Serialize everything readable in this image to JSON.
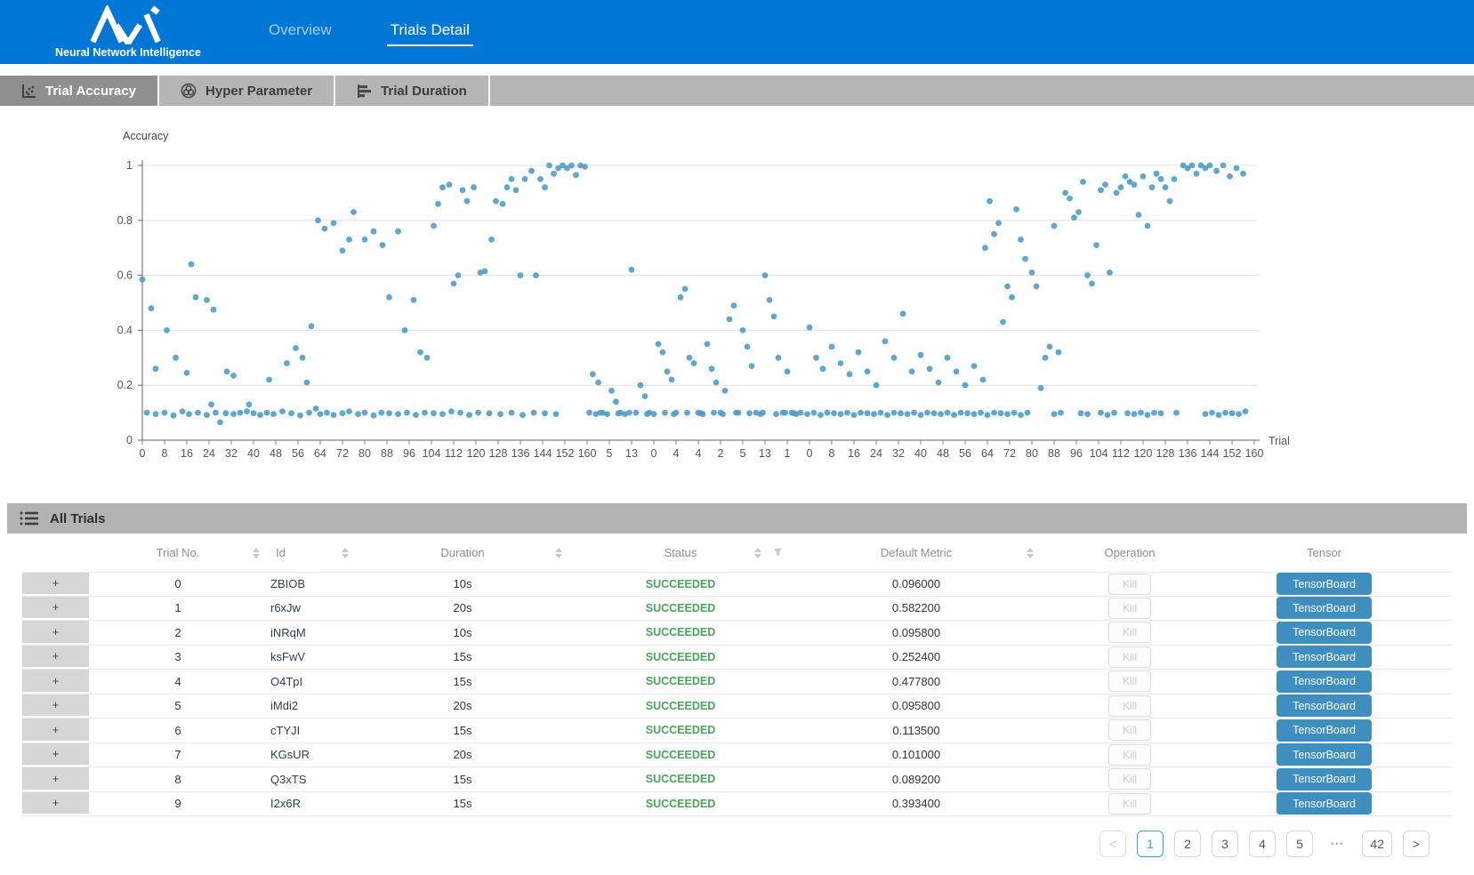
{
  "header": {
    "brand": "Neural Network Intelligence",
    "tabs": [
      {
        "label": "Overview",
        "active": false
      },
      {
        "label": "Trials Detail",
        "active": true
      }
    ]
  },
  "subtabs": [
    {
      "label": "Trial Accuracy",
      "icon": "scatter-plot-icon",
      "active": true
    },
    {
      "label": "Hyper Parameter",
      "icon": "hyper-parameter-icon",
      "active": false
    },
    {
      "label": "Trial Duration",
      "icon": "duration-bars-icon",
      "active": false
    }
  ],
  "chart_data": {
    "type": "scatter",
    "title": "Accuracy",
    "xlabel": "Trial",
    "ylabel": "Accuracy",
    "ylim": [
      0,
      1
    ],
    "grid": true,
    "y_ticks": [
      0,
      0.2,
      0.4,
      0.6,
      0.8,
      1
    ],
    "x_tick_labels": [
      "0",
      "8",
      "16",
      "24",
      "32",
      "40",
      "48",
      "56",
      "64",
      "72",
      "80",
      "88",
      "96",
      "104",
      "112",
      "120",
      "128",
      "136",
      "144",
      "152",
      "160",
      "5",
      "13",
      "0",
      "4",
      "4",
      "2",
      "5",
      "13",
      "1",
      "0",
      "8",
      "16",
      "24",
      "32",
      "40",
      "48",
      "56",
      "64",
      "72",
      "80",
      "88",
      "96",
      "104",
      "112",
      "120",
      "128",
      "136",
      "144",
      "152",
      "160"
    ],
    "point_color": "#4f9dc9",
    "points": [
      [
        0.004,
        0.1
      ],
      [
        0.012,
        0.095
      ],
      [
        0.02,
        0.1
      ],
      [
        0.028,
        0.09
      ],
      [
        0.036,
        0.105
      ],
      [
        0.042,
        0.095
      ],
      [
        0.05,
        0.1
      ],
      [
        0.058,
        0.092
      ],
      [
        0.062,
        0.13
      ],
      [
        0.066,
        0.1
      ],
      [
        0.07,
        0.065
      ],
      [
        0.075,
        0.098
      ],
      [
        0.082,
        0.095
      ],
      [
        0.088,
        0.1
      ],
      [
        0.094,
        0.105
      ],
      [
        0.1,
        0.098
      ],
      [
        0.106,
        0.092
      ],
      [
        0.112,
        0.1
      ],
      [
        0.118,
        0.095
      ],
      [
        0.126,
        0.105
      ],
      [
        0.134,
        0.098
      ],
      [
        0.142,
        0.09
      ],
      [
        0.15,
        0.1
      ],
      [
        0.156,
        0.115
      ],
      [
        0.16,
        0.095
      ],
      [
        0.166,
        0.1
      ],
      [
        0.172,
        0.092
      ],
      [
        0.18,
        0.098
      ],
      [
        0.186,
        0.105
      ],
      [
        0.194,
        0.095
      ],
      [
        0.2,
        0.1
      ],
      [
        0.208,
        0.09
      ],
      [
        0.215,
        0.1
      ],
      [
        0.222,
        0.098
      ],
      [
        0.23,
        0.095
      ],
      [
        0.238,
        0.1
      ],
      [
        0.246,
        0.092
      ],
      [
        0.254,
        0.1
      ],
      [
        0.262,
        0.098
      ],
      [
        0.27,
        0.095
      ],
      [
        0.278,
        0.105
      ],
      [
        0.286,
        0.1
      ],
      [
        0.294,
        0.092
      ],
      [
        0.302,
        0.1
      ],
      [
        0.312,
        0.098
      ],
      [
        0.322,
        0.095
      ],
      [
        0.332,
        0.1
      ],
      [
        0.342,
        0.092
      ],
      [
        0.352,
        0.1
      ],
      [
        0.362,
        0.098
      ],
      [
        0.372,
        0.095
      ],
      [
        0.0,
        0.585
      ],
      [
        0.008,
        0.48
      ],
      [
        0.012,
        0.26
      ],
      [
        0.022,
        0.4
      ],
      [
        0.03,
        0.3
      ],
      [
        0.04,
        0.245
      ],
      [
        0.044,
        0.64
      ],
      [
        0.048,
        0.52
      ],
      [
        0.058,
        0.51
      ],
      [
        0.064,
        0.475
      ],
      [
        0.076,
        0.25
      ],
      [
        0.082,
        0.235
      ],
      [
        0.096,
        0.13
      ],
      [
        0.114,
        0.22
      ],
      [
        0.13,
        0.28
      ],
      [
        0.138,
        0.335
      ],
      [
        0.144,
        0.3
      ],
      [
        0.148,
        0.21
      ],
      [
        0.152,
        0.415
      ],
      [
        0.158,
        0.8
      ],
      [
        0.164,
        0.77
      ],
      [
        0.172,
        0.79
      ],
      [
        0.18,
        0.69
      ],
      [
        0.186,
        0.73
      ],
      [
        0.19,
        0.83
      ],
      [
        0.2,
        0.73
      ],
      [
        0.208,
        0.76
      ],
      [
        0.216,
        0.71
      ],
      [
        0.222,
        0.52
      ],
      [
        0.23,
        0.76
      ],
      [
        0.236,
        0.4
      ],
      [
        0.244,
        0.51
      ],
      [
        0.25,
        0.32
      ],
      [
        0.256,
        0.3
      ],
      [
        0.262,
        0.78
      ],
      [
        0.266,
        0.86
      ],
      [
        0.27,
        0.92
      ],
      [
        0.276,
        0.93
      ],
      [
        0.28,
        0.57
      ],
      [
        0.284,
        0.6
      ],
      [
        0.288,
        0.91
      ],
      [
        0.292,
        0.87
      ],
      [
        0.298,
        0.92
      ],
      [
        0.304,
        0.61
      ],
      [
        0.308,
        0.615
      ],
      [
        0.314,
        0.73
      ],
      [
        0.318,
        0.87
      ],
      [
        0.324,
        0.86
      ],
      [
        0.328,
        0.92
      ],
      [
        0.332,
        0.95
      ],
      [
        0.336,
        0.91
      ],
      [
        0.34,
        0.6
      ],
      [
        0.344,
        0.95
      ],
      [
        0.35,
        0.98
      ],
      [
        0.354,
        0.6
      ],
      [
        0.358,
        0.95
      ],
      [
        0.362,
        0.92
      ],
      [
        0.366,
        1.0
      ],
      [
        0.37,
        0.97
      ],
      [
        0.374,
        0.99
      ],
      [
        0.378,
        1.0
      ],
      [
        0.382,
        0.99
      ],
      [
        0.386,
        1.0
      ],
      [
        0.39,
        0.965
      ],
      [
        0.394,
        1.0
      ],
      [
        0.398,
        0.995
      ],
      [
        0.405,
        0.24
      ],
      [
        0.41,
        0.21
      ],
      [
        0.414,
        0.1
      ],
      [
        0.418,
        0.095
      ],
      [
        0.422,
        0.18
      ],
      [
        0.426,
        0.14
      ],
      [
        0.43,
        0.1
      ],
      [
        0.434,
        0.095
      ],
      [
        0.44,
        0.62
      ],
      [
        0.444,
        0.1
      ],
      [
        0.448,
        0.2
      ],
      [
        0.452,
        0.16
      ],
      [
        0.456,
        0.1
      ],
      [
        0.46,
        0.095
      ],
      [
        0.464,
        0.35
      ],
      [
        0.468,
        0.32
      ],
      [
        0.472,
        0.25
      ],
      [
        0.476,
        0.22
      ],
      [
        0.48,
        0.1
      ],
      [
        0.484,
        0.52
      ],
      [
        0.488,
        0.55
      ],
      [
        0.492,
        0.3
      ],
      [
        0.496,
        0.28
      ],
      [
        0.5,
        0.1
      ],
      [
        0.504,
        0.095
      ],
      [
        0.508,
        0.35
      ],
      [
        0.512,
        0.26
      ],
      [
        0.516,
        0.21
      ],
      [
        0.52,
        0.1
      ],
      [
        0.524,
        0.18
      ],
      [
        0.528,
        0.44
      ],
      [
        0.532,
        0.49
      ],
      [
        0.536,
        0.1
      ],
      [
        0.54,
        0.4
      ],
      [
        0.544,
        0.34
      ],
      [
        0.548,
        0.27
      ],
      [
        0.552,
        0.1
      ],
      [
        0.556,
        0.095
      ],
      [
        0.56,
        0.6
      ],
      [
        0.564,
        0.51
      ],
      [
        0.568,
        0.45
      ],
      [
        0.572,
        0.3
      ],
      [
        0.576,
        0.1
      ],
      [
        0.58,
        0.25
      ],
      [
        0.584,
        0.1
      ],
      [
        0.588,
        0.095
      ],
      [
        0.402,
        0.1
      ],
      [
        0.408,
        0.095
      ],
      [
        0.412,
        0.1
      ],
      [
        0.428,
        0.098
      ],
      [
        0.438,
        0.1
      ],
      [
        0.454,
        0.095
      ],
      [
        0.47,
        0.1
      ],
      [
        0.478,
        0.095
      ],
      [
        0.49,
        0.1
      ],
      [
        0.502,
        0.098
      ],
      [
        0.514,
        0.1
      ],
      [
        0.522,
        0.095
      ],
      [
        0.534,
        0.1
      ],
      [
        0.546,
        0.098
      ],
      [
        0.558,
        0.1
      ],
      [
        0.57,
        0.095
      ],
      [
        0.578,
        0.1
      ],
      [
        0.586,
        0.098
      ],
      [
        0.592,
        0.1
      ],
      [
        0.598,
        0.095
      ],
      [
        0.604,
        0.1
      ],
      [
        0.61,
        0.092
      ],
      [
        0.616,
        0.1
      ],
      [
        0.622,
        0.098
      ],
      [
        0.628,
        0.095
      ],
      [
        0.634,
        0.1
      ],
      [
        0.64,
        0.092
      ],
      [
        0.646,
        0.1
      ],
      [
        0.652,
        0.098
      ],
      [
        0.658,
        0.095
      ],
      [
        0.664,
        0.1
      ],
      [
        0.67,
        0.092
      ],
      [
        0.676,
        0.1
      ],
      [
        0.682,
        0.098
      ],
      [
        0.688,
        0.095
      ],
      [
        0.694,
        0.1
      ],
      [
        0.7,
        0.092
      ],
      [
        0.706,
        0.1
      ],
      [
        0.712,
        0.098
      ],
      [
        0.718,
        0.095
      ],
      [
        0.724,
        0.1
      ],
      [
        0.73,
        0.092
      ],
      [
        0.736,
        0.1
      ],
      [
        0.742,
        0.098
      ],
      [
        0.748,
        0.095
      ],
      [
        0.754,
        0.1
      ],
      [
        0.76,
        0.092
      ],
      [
        0.766,
        0.1
      ],
      [
        0.772,
        0.098
      ],
      [
        0.778,
        0.095
      ],
      [
        0.784,
        0.1
      ],
      [
        0.79,
        0.092
      ],
      [
        0.796,
        0.1
      ],
      [
        0.82,
        0.095
      ],
      [
        0.826,
        0.1
      ],
      [
        0.844,
        0.098
      ],
      [
        0.85,
        0.095
      ],
      [
        0.862,
        0.1
      ],
      [
        0.868,
        0.092
      ],
      [
        0.874,
        0.1
      ],
      [
        0.886,
        0.098
      ],
      [
        0.892,
        0.095
      ],
      [
        0.898,
        0.1
      ],
      [
        0.904,
        0.092
      ],
      [
        0.91,
        0.1
      ],
      [
        0.916,
        0.098
      ],
      [
        0.93,
        0.1
      ],
      [
        0.956,
        0.095
      ],
      [
        0.962,
        0.1
      ],
      [
        0.968,
        0.092
      ],
      [
        0.974,
        0.1
      ],
      [
        0.98,
        0.098
      ],
      [
        0.986,
        0.095
      ],
      [
        0.992,
        0.105
      ],
      [
        0.6,
        0.41
      ],
      [
        0.606,
        0.3
      ],
      [
        0.612,
        0.26
      ],
      [
        0.62,
        0.34
      ],
      [
        0.628,
        0.28
      ],
      [
        0.636,
        0.24
      ],
      [
        0.644,
        0.32
      ],
      [
        0.652,
        0.25
      ],
      [
        0.66,
        0.2
      ],
      [
        0.668,
        0.36
      ],
      [
        0.676,
        0.3
      ],
      [
        0.684,
        0.46
      ],
      [
        0.692,
        0.25
      ],
      [
        0.7,
        0.31
      ],
      [
        0.708,
        0.26
      ],
      [
        0.716,
        0.21
      ],
      [
        0.724,
        0.3
      ],
      [
        0.732,
        0.25
      ],
      [
        0.74,
        0.2
      ],
      [
        0.748,
        0.27
      ],
      [
        0.756,
        0.22
      ],
      [
        0.758,
        0.7
      ],
      [
        0.762,
        0.87
      ],
      [
        0.766,
        0.75
      ],
      [
        0.77,
        0.79
      ],
      [
        0.774,
        0.43
      ],
      [
        0.778,
        0.56
      ],
      [
        0.782,
        0.52
      ],
      [
        0.786,
        0.84
      ],
      [
        0.79,
        0.73
      ],
      [
        0.794,
        0.66
      ],
      [
        0.8,
        0.61
      ],
      [
        0.804,
        0.56
      ],
      [
        0.808,
        0.19
      ],
      [
        0.812,
        0.3
      ],
      [
        0.816,
        0.34
      ],
      [
        0.82,
        0.78
      ],
      [
        0.824,
        0.32
      ],
      [
        0.83,
        0.9
      ],
      [
        0.834,
        0.88
      ],
      [
        0.838,
        0.81
      ],
      [
        0.842,
        0.83
      ],
      [
        0.846,
        0.94
      ],
      [
        0.85,
        0.6
      ],
      [
        0.854,
        0.57
      ],
      [
        0.858,
        0.71
      ],
      [
        0.862,
        0.91
      ],
      [
        0.866,
        0.93
      ],
      [
        0.87,
        0.61
      ],
      [
        0.876,
        0.9
      ],
      [
        0.88,
        0.92
      ],
      [
        0.884,
        0.96
      ],
      [
        0.888,
        0.94
      ],
      [
        0.892,
        0.93
      ],
      [
        0.896,
        0.82
      ],
      [
        0.9,
        0.96
      ],
      [
        0.904,
        0.78
      ],
      [
        0.908,
        0.92
      ],
      [
        0.912,
        0.97
      ],
      [
        0.916,
        0.95
      ],
      [
        0.92,
        0.92
      ],
      [
        0.924,
        0.87
      ],
      [
        0.928,
        0.95
      ],
      [
        0.936,
        1.0
      ],
      [
        0.94,
        0.99
      ],
      [
        0.944,
        1.0
      ],
      [
        0.948,
        0.97
      ],
      [
        0.952,
        1.0
      ],
      [
        0.956,
        0.99
      ],
      [
        0.96,
        1.0
      ],
      [
        0.966,
        0.98
      ],
      [
        0.972,
        1.0
      ],
      [
        0.978,
        0.96
      ],
      [
        0.984,
        0.99
      ],
      [
        0.99,
        0.97
      ]
    ]
  },
  "table": {
    "section_title": "All Trials",
    "columns": [
      {
        "label": "Trial No.",
        "sortable": true
      },
      {
        "label": "Id",
        "sortable": true
      },
      {
        "label": "Duration",
        "sortable": true
      },
      {
        "label": "Status",
        "sortable": true,
        "filterable": true
      },
      {
        "label": "Default Metric",
        "sortable": true
      },
      {
        "label": "Operation",
        "sortable": false
      },
      {
        "label": "Tensor",
        "sortable": false
      }
    ],
    "status_color": "#4aa45a",
    "rows": [
      {
        "expander": "+",
        "trial_no": "0",
        "id": "ZBIOB",
        "duration": "10s",
        "status": "SUCCEEDED",
        "default_metric": "0.096000",
        "operation": "Kill",
        "tensor": "TensorBoard"
      },
      {
        "expander": "+",
        "trial_no": "1",
        "id": "r6xJw",
        "duration": "20s",
        "status": "SUCCEEDED",
        "default_metric": "0.582200",
        "operation": "Kill",
        "tensor": "TensorBoard"
      },
      {
        "expander": "+",
        "trial_no": "2",
        "id": "iNRqM",
        "duration": "10s",
        "status": "SUCCEEDED",
        "default_metric": "0.095800",
        "operation": "Kill",
        "tensor": "TensorBoard"
      },
      {
        "expander": "+",
        "trial_no": "3",
        "id": "ksFwV",
        "duration": "15s",
        "status": "SUCCEEDED",
        "default_metric": "0.252400",
        "operation": "Kill",
        "tensor": "TensorBoard"
      },
      {
        "expander": "+",
        "trial_no": "4",
        "id": "O4TpI",
        "duration": "15s",
        "status": "SUCCEEDED",
        "default_metric": "0.477800",
        "operation": "Kill",
        "tensor": "TensorBoard"
      },
      {
        "expander": "+",
        "trial_no": "5",
        "id": "iMdi2",
        "duration": "20s",
        "status": "SUCCEEDED",
        "default_metric": "0.095800",
        "operation": "Kill",
        "tensor": "TensorBoard"
      },
      {
        "expander": "+",
        "trial_no": "6",
        "id": "cTYJI",
        "duration": "15s",
        "status": "SUCCEEDED",
        "default_metric": "0.113500",
        "operation": "Kill",
        "tensor": "TensorBoard"
      },
      {
        "expander": "+",
        "trial_no": "7",
        "id": "KGsUR",
        "duration": "20s",
        "status": "SUCCEEDED",
        "default_metric": "0.101000",
        "operation": "Kill",
        "tensor": "TensorBoard"
      },
      {
        "expander": "+",
        "trial_no": "8",
        "id": "Q3xTS",
        "duration": "15s",
        "status": "SUCCEEDED",
        "default_metric": "0.089200",
        "operation": "Kill",
        "tensor": "TensorBoard"
      },
      {
        "expander": "+",
        "trial_no": "9",
        "id": "I2x6R",
        "duration": "15s",
        "status": "SUCCEEDED",
        "default_metric": "0.393400",
        "operation": "Kill",
        "tensor": "TensorBoard"
      }
    ]
  },
  "pagination": {
    "prev": "<",
    "pages": [
      "1",
      "2",
      "3",
      "4",
      "5",
      "•••",
      "42"
    ],
    "active_page": "1",
    "next": ">"
  },
  "colors": {
    "header_blue": "#0077d4",
    "subtab_bar": "#b5b5b5",
    "subtab_active": "#8f8f8f",
    "point_blue": "#4f9dc9",
    "tensorboard_button": "#3e8ec0",
    "status_green": "#4aa45a"
  }
}
